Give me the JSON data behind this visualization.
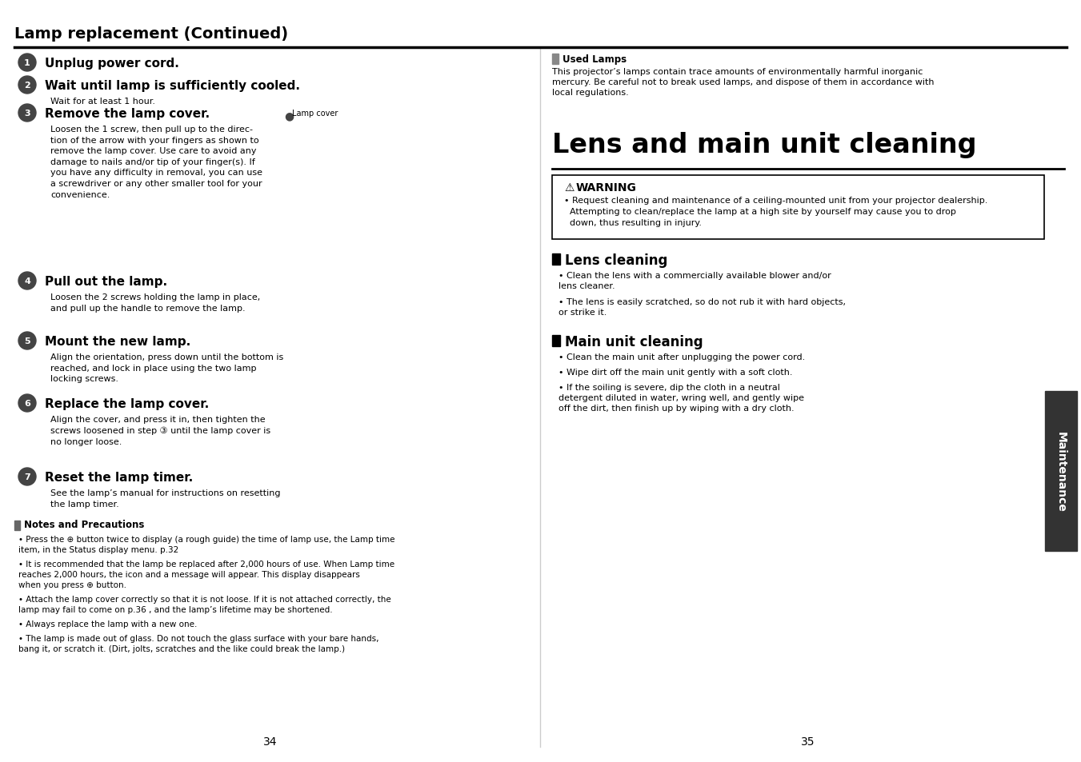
{
  "page_bg": "#ffffff",
  "left_title": "Lamp replacement (Continued)",
  "right_title": "Lens and main unit cleaning",
  "page_numbers": [
    "34",
    "35"
  ],
  "steps": [
    {
      "num": "1",
      "heading": "Unplug power cord.",
      "body": ""
    },
    {
      "num": "2",
      "heading": "Wait until lamp is sufficiently cooled.",
      "body": "Wait for at least 1 hour."
    },
    {
      "num": "3",
      "heading": "Remove the lamp cover.",
      "body": "Loosen the 1 screw, then pull up to the direc-\ntion of the arrow with your fingers as shown to\nremove the lamp cover. Use care to avoid any\ndamage to nails and/or tip of your finger(s). If\nyou have any difficulty in removal, you can use\na screwdriver or any other smaller tool for your\nconvenience."
    },
    {
      "num": "4",
      "heading": "Pull out the lamp.",
      "body": "Loosen the 2 screws holding the lamp in place,\nand pull up the handle to remove the lamp."
    },
    {
      "num": "5",
      "heading": "Mount the new lamp.",
      "body": "Align the orientation, press down until the bottom is\nreached, and lock in place using the two lamp\nlocking screws."
    },
    {
      "num": "6",
      "heading": "Replace the lamp cover.",
      "body": "Align the cover, and press it in, then tighten the\nscrews loosened in step ③ until the lamp cover is\nno longer loose."
    },
    {
      "num": "7",
      "heading": "Reset the lamp timer.",
      "body": "See the lamp’s manual for instructions on resetting\nthe lamp timer."
    }
  ],
  "notes_heading": "Notes and Precautions",
  "notes_bullets": [
    "Press the ⊕ button twice to display (a rough guide) the time of lamp use, the Lamp time\nitem, in the Status display menu. p.32",
    "It is recommended that the lamp be replaced after 2,000 hours of use. When Lamp time\nreaches 2,000 hours, the icon and a message will appear. This display disappears\nwhen you press ⊕ button.",
    "Attach the lamp cover correctly so that it is not loose. If it is not attached correctly, the\nlamp may fail to come on p.36 , and the lamp’s lifetime may be shortened.",
    "Always replace the lamp with a new one.",
    "The lamp is made out of glass. Do not touch the glass surface with your bare hands,\nbang it, or scratch it. (Dirt, jolts, scratches and the like could break the lamp.)"
  ],
  "used_lamps_heading": "Used Lamps",
  "used_lamps_body": "This projector’s lamps contain trace amounts of environmentally harmful inorganic\nmercury. Be careful not to break used lamps, and dispose of them in accordance with\nlocal regulations.",
  "warning_heading": "WARNING",
  "warning_body": "  • Request cleaning and maintenance of a ceiling-mounted unit from your projector dealership.\n    Attempting to clean/replace the lamp at a high site by yourself may cause you to drop\n    down, thus resulting in injury.",
  "lens_heading": "Lens cleaning",
  "lens_bullets": [
    "Clean the lens with a commercially available blower and/or\nlens cleaner.",
    "The lens is easily scratched, so do not rub it with hard objects,\nor strike it."
  ],
  "main_heading": "Main unit cleaning",
  "main_bullets": [
    "Clean the main unit after unplugging the power cord.",
    "Wipe dirt off the main unit gently with a soft cloth.",
    "If the soiling is severe, dip the cloth in a neutral\ndetergent diluted in water, wring well, and gently wipe\noff the dirt, then finish up by wiping with a dry cloth."
  ],
  "maintenance_tab": "Maintenance",
  "circle_bg": "#444444",
  "circle_text": "#ffffff",
  "tab_bg": "#333333",
  "tab_text": "#ffffff"
}
